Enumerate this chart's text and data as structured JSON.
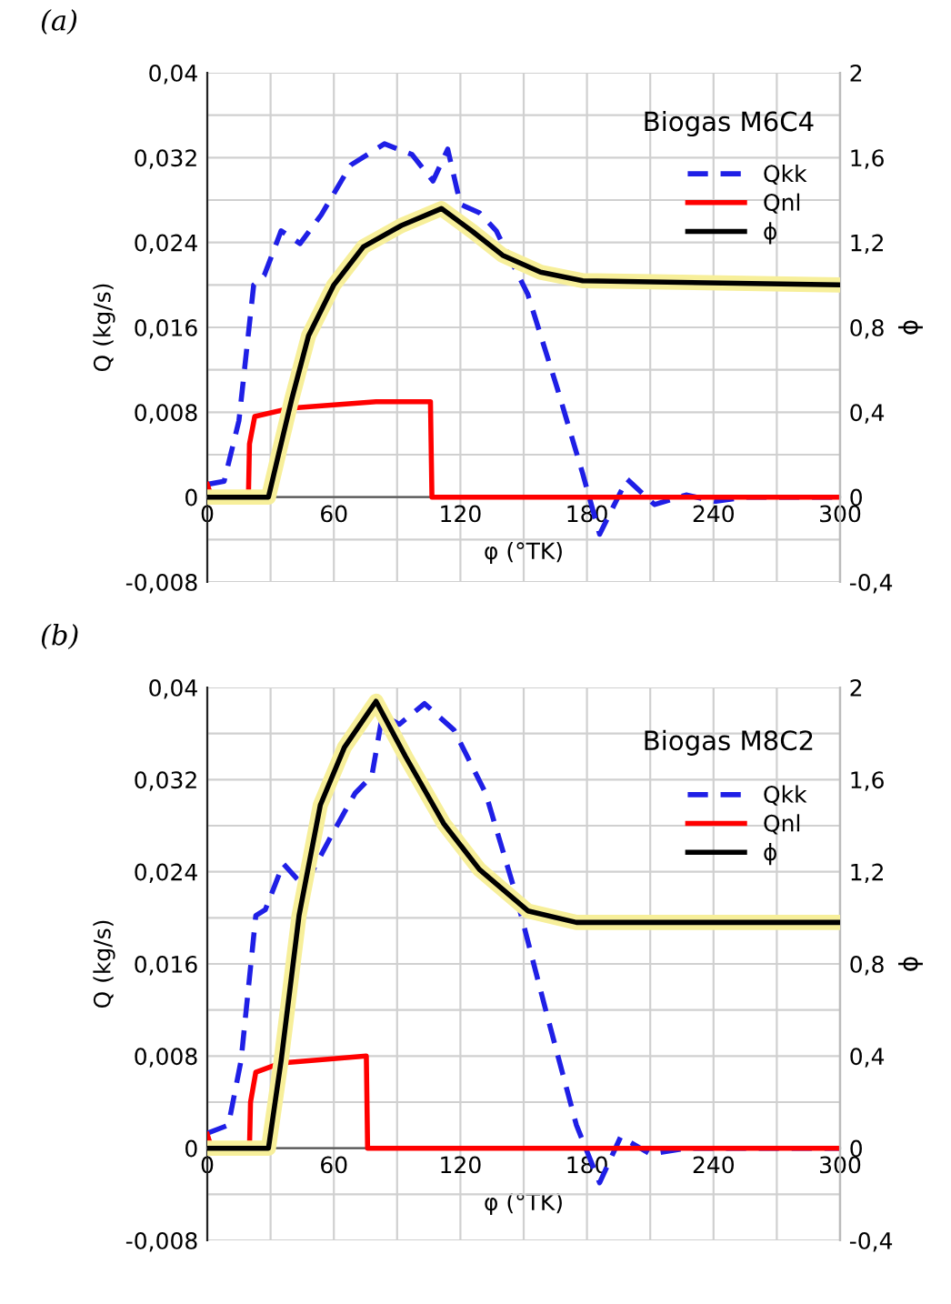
{
  "chart_data": [
    {
      "type": "line",
      "title": "Biogas M6C4",
      "xlabel": "φ (°TK)",
      "ylabel": "Q (kg/s)",
      "y2label": "ϕ",
      "annotations": [
        "(a)"
      ],
      "xlim": [
        0,
        300
      ],
      "ylim": [
        -0.008,
        0.04
      ],
      "y2lim": [
        -0.4,
        2
      ],
      "xticks": [
        0,
        {
          "value": 30,
          "label": null
        },
        60,
        {
          "value": 90,
          "label": null
        },
        120,
        {
          "value": 150,
          "label": null
        },
        180,
        {
          "value": 210,
          "label": null
        },
        240,
        {
          "value": 270,
          "label": null
        },
        300
      ],
      "yticks": [
        {
          "value": -0.008,
          "label": "-0,008"
        },
        {
          "value": -0.004,
          "label": null
        },
        0,
        {
          "value": 0.004,
          "label": null
        },
        {
          "value": 0.008,
          "label": "0,008"
        },
        {
          "value": 0.012,
          "label": null
        },
        {
          "value": 0.016,
          "label": "0,016"
        },
        {
          "value": 0.02,
          "label": null
        },
        {
          "value": 0.024,
          "label": "0,024"
        },
        {
          "value": 0.028,
          "label": null
        },
        {
          "value": 0.032,
          "label": "0,032"
        },
        {
          "value": 0.036,
          "label": null
        },
        {
          "value": 0.04,
          "label": "0,04"
        }
      ],
      "y2ticks": [
        {
          "value": -0.4,
          "label": "-0,4"
        },
        0,
        {
          "value": 0.4,
          "label": "0,4"
        },
        {
          "value": 0.8,
          "label": "0,8"
        },
        {
          "value": 1.2,
          "label": "1,2"
        },
        {
          "value": 1.6,
          "label": "1,6"
        },
        2
      ],
      "grid": true,
      "legend": "right",
      "series": [
        {
          "name": "Qkk",
          "color": "#1f1fe6",
          "line_style": "dashed",
          "x": [
            0,
            8,
            15,
            22,
            27,
            35,
            44,
            54,
            68,
            84,
            97,
            107,
            114,
            120,
            129,
            137,
            152,
            166,
            178,
            186,
            199,
            212,
            227,
            241,
            255,
            300
          ],
          "values": [
            0.0012,
            0.0015,
            0.0072,
            0.02,
            0.0209,
            0.0251,
            0.0239,
            0.0266,
            0.0313,
            0.0333,
            0.0323,
            0.0298,
            0.0328,
            0.0276,
            0.0268,
            0.0251,
            0.0191,
            0.0102,
            0.0022,
            -0.0035,
            0.0017,
            -0.0007,
            0.0002,
            -0.0004,
            0,
            0
          ]
        },
        {
          "name": "Qnl",
          "color": "#ff0000",
          "line_style": "solid",
          "x": [
            0,
            2,
            19.5,
            20,
            22.5,
            40,
            80,
            105.8,
            106.5,
            300
          ],
          "values": [
            0.0012,
            0,
            0,
            0.005,
            0.0076,
            0.0084,
            0.009,
            0.009,
            0,
            0
          ]
        },
        {
          "name": "ϕ",
          "color": "#000000",
          "line_style": "solid",
          "axis": "y2",
          "x": [
            0,
            29,
            34,
            40,
            48,
            60,
            74,
            92,
            111,
            126,
            140,
            158,
            178,
            300
          ],
          "values": [
            0,
            0,
            0.21,
            0.46,
            0.76,
            1.0,
            1.18,
            1.28,
            1.36,
            1.25,
            1.14,
            1.06,
            1.02,
            1.0
          ]
        }
      ]
    },
    {
      "type": "line",
      "title": "Biogas M8C2",
      "xlabel": "φ (°TK)",
      "ylabel": "Q (kg/s)",
      "y2label": "ϕ",
      "annotations": [
        "(b)"
      ],
      "xlim": [
        0,
        300
      ],
      "ylim": [
        -0.008,
        0.04
      ],
      "y2lim": [
        -0.4,
        2
      ],
      "xticks": [
        0,
        {
          "value": 30,
          "label": null
        },
        60,
        {
          "value": 90,
          "label": null
        },
        120,
        {
          "value": 150,
          "label": null
        },
        180,
        {
          "value": 210,
          "label": null
        },
        240,
        {
          "value": 270,
          "label": null
        },
        300
      ],
      "yticks": [
        {
          "value": -0.008,
          "label": "-0,008"
        },
        {
          "value": -0.004,
          "label": null
        },
        0,
        {
          "value": 0.004,
          "label": null
        },
        {
          "value": 0.008,
          "label": "0,008"
        },
        {
          "value": 0.012,
          "label": null
        },
        {
          "value": 0.016,
          "label": "0,016"
        },
        {
          "value": 0.02,
          "label": null
        },
        {
          "value": 0.024,
          "label": "0,024"
        },
        {
          "value": 0.028,
          "label": null
        },
        {
          "value": 0.032,
          "label": "0,032"
        },
        {
          "value": 0.036,
          "label": null
        },
        {
          "value": 0.04,
          "label": "0,04"
        }
      ],
      "y2ticks": [
        {
          "value": -0.4,
          "label": "-0,4"
        },
        0,
        {
          "value": 0.4,
          "label": "0,4"
        },
        {
          "value": 0.8,
          "label": "0,8"
        },
        {
          "value": 1.2,
          "label": "1,2"
        },
        {
          "value": 1.6,
          "label": "1,6"
        },
        2
      ],
      "grid": true,
      "legend": "right",
      "series": [
        {
          "name": "Qkk",
          "color": "#1f1fe6",
          "line_style": "dashed",
          "x": [
            0,
            10,
            16,
            23,
            27.5,
            36,
            46,
            59,
            70,
            78,
            83,
            91,
            103,
            117,
            132,
            146,
            161,
            175,
            186,
            196,
            210,
            227,
            300
          ],
          "values": [
            0.0013,
            0.002,
            0.0076,
            0.0202,
            0.0207,
            0.0247,
            0.0227,
            0.0272,
            0.0308,
            0.0323,
            0.0376,
            0.0368,
            0.0386,
            0.0363,
            0.0308,
            0.0222,
            0.0116,
            0.002,
            -0.003,
            0.001,
            -0.0005,
            0,
            0
          ]
        },
        {
          "name": "Qnl",
          "color": "#ff0000",
          "line_style": "solid",
          "x": [
            0,
            2,
            20,
            20.5,
            23,
            35,
            75.4,
            76,
            300
          ],
          "values": [
            0.0012,
            0,
            0,
            0.004,
            0.0066,
            0.0074,
            0.008,
            0,
            0
          ]
        },
        {
          "name": "ϕ",
          "color": "#000000",
          "line_style": "solid",
          "axis": "y2",
          "x": [
            0,
            29,
            35,
            43.5,
            53.6,
            65,
            80,
            94,
            112,
            129,
            152,
            175,
            300
          ],
          "values": [
            0,
            0,
            0.38,
            1.01,
            1.49,
            1.74,
            1.94,
            1.7,
            1.41,
            1.21,
            1.03,
            0.98,
            0.98
          ]
        }
      ]
    }
  ]
}
